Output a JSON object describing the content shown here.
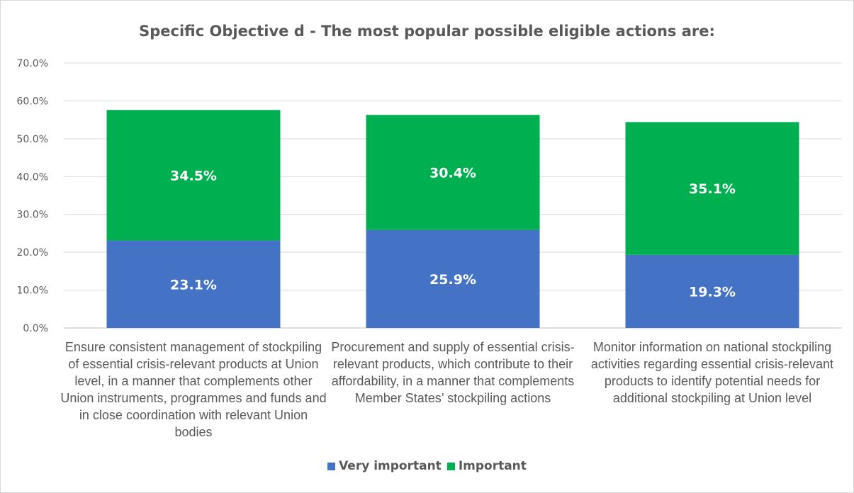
{
  "chart_data": {
    "type": "bar",
    "stacked": true,
    "title": "Specific Objective d - The most popular possible eligible actions are:",
    "categories": [
      "Ensure consistent management of stockpiling of essential crisis-relevant products at Union level, in a manner that complements other Union instruments, programmes and funds and in close coordination with relevant Union bodies",
      "Procurement and supply of essential crisis-relevant products, which contribute to their affordability, in a manner that complements Member States’ stockpiling actions",
      "Monitor information on national stockpiling activities regarding essential crisis-relevant products to identify potential needs for additional stockpiling at Union level"
    ],
    "series": [
      {
        "name": "Very important",
        "color": "#4472c4",
        "values": [
          23.1,
          25.9,
          19.3
        ],
        "labels": [
          "23.1%",
          "25.9%",
          "19.3%"
        ]
      },
      {
        "name": "Important",
        "color": "#00b050",
        "values": [
          34.5,
          30.4,
          35.1
        ],
        "labels": [
          "34.5%",
          "30.4%",
          "35.1%"
        ]
      }
    ],
    "ylim": [
      0,
      70
    ],
    "yticks": [
      "0.0%",
      "10.0%",
      "20.0%",
      "30.0%",
      "40.0%",
      "50.0%",
      "60.0%",
      "70.0%"
    ],
    "grid": true,
    "legend": "bottom",
    "xlabel": "",
    "ylabel": ""
  }
}
